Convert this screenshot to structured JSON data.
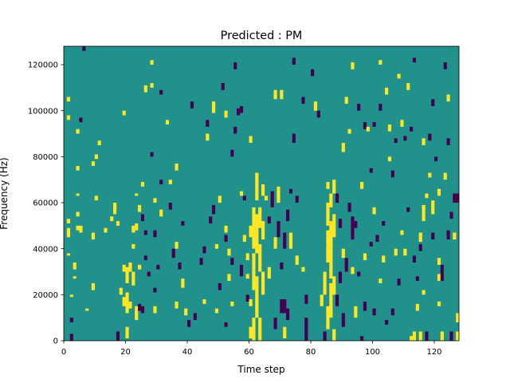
{
  "chart_data": {
    "type": "heatmap",
    "title": "Predicted : PM",
    "xlabel": "Time step",
    "ylabel": "Frequency (Hz)",
    "xlim": [
      0,
      128
    ],
    "ylim": [
      0,
      128000
    ],
    "x_ticks": [
      0,
      20,
      40,
      60,
      80,
      100,
      120
    ],
    "x_tick_labels": [
      "0",
      "20",
      "40",
      "60",
      "80",
      "100",
      "120"
    ],
    "y_ticks": [
      0,
      20000,
      40000,
      60000,
      80000,
      100000,
      120000
    ],
    "y_tick_labels": [
      "0",
      "20000",
      "40000",
      "60000",
      "80000",
      "100000",
      "120000"
    ],
    "grid": false,
    "legend": "none",
    "colormap": "viridis",
    "value_levels": [
      -1,
      0,
      1
    ],
    "level_colors": {
      "-1": "#440154",
      "0": "#21918c",
      "1": "#fde725"
    },
    "background_value": 0,
    "n_time_steps": 128,
    "n_freq_bins": 128,
    "bin_width_hz": 1000,
    "nonzero_cells_note": "cells listed as [time_step, freq_bin_start, freq_bin_end_exclusive, value]; all other cells = 0",
    "cells": [
      [
        1,
        45,
        49,
        1
      ],
      [
        1,
        51,
        53,
        1
      ],
      [
        1,
        37,
        38,
        1
      ],
      [
        1,
        104,
        106,
        1
      ],
      [
        1,
        96,
        98,
        1
      ],
      [
        2,
        19,
        20,
        1
      ],
      [
        2,
        8,
        10,
        -1
      ],
      [
        2,
        0,
        3,
        -1
      ],
      [
        3,
        31,
        34,
        1
      ],
      [
        3,
        27,
        28,
        1
      ],
      [
        4,
        48,
        50,
        1
      ],
      [
        4,
        54,
        56,
        1
      ],
      [
        4,
        63,
        64,
        1
      ],
      [
        4,
        74,
        76,
        1
      ],
      [
        4,
        90,
        92,
        1
      ],
      [
        5,
        47,
        50,
        1
      ],
      [
        5,
        95,
        97,
        -1
      ],
      [
        6,
        126,
        128,
        -1
      ],
      [
        7,
        13,
        14,
        1
      ],
      [
        9,
        22,
        25,
        1
      ],
      [
        9,
        44,
        47,
        1
      ],
      [
        9,
        76,
        78,
        1
      ],
      [
        10,
        61,
        63,
        1
      ],
      [
        10,
        79,
        81,
        1
      ],
      [
        11,
        85,
        87,
        1
      ],
      [
        13,
        47,
        49,
        1
      ],
      [
        15,
        52,
        54,
        1
      ],
      [
        16,
        55,
        60,
        1
      ],
      [
        17,
        0,
        4,
        -1
      ],
      [
        17,
        50,
        52,
        1
      ],
      [
        18,
        20,
        23,
        1
      ],
      [
        19,
        15,
        19,
        1
      ],
      [
        19,
        30,
        33,
        1
      ],
      [
        19,
        98,
        100,
        1
      ],
      [
        20,
        12,
        21,
        1
      ],
      [
        20,
        1,
        6,
        1
      ],
      [
        20,
        25,
        32,
        1
      ],
      [
        21,
        14,
        17,
        1
      ],
      [
        21,
        30,
        34,
        1
      ],
      [
        22,
        24,
        30,
        1
      ],
      [
        22,
        40,
        42,
        1
      ],
      [
        22,
        47,
        50,
        1
      ],
      [
        23,
        9,
        15,
        1
      ],
      [
        23,
        48,
        51,
        1
      ],
      [
        23,
        63,
        64,
        1
      ],
      [
        24,
        56,
        59,
        1
      ],
      [
        24,
        31,
        33,
        1
      ],
      [
        24,
        13,
        16,
        -1
      ],
      [
        25,
        12,
        15,
        -1
      ],
      [
        25,
        52,
        55,
        -1
      ],
      [
        25,
        67,
        69,
        1
      ],
      [
        26,
        108,
        111,
        1
      ],
      [
        26,
        46,
        48,
        -1
      ],
      [
        26,
        35,
        37,
        -1
      ],
      [
        27,
        28,
        30,
        -1
      ],
      [
        28,
        120,
        122,
        1
      ],
      [
        28,
        110,
        112,
        1
      ],
      [
        28,
        80,
        82,
        -1
      ],
      [
        29,
        12,
        15,
        1
      ],
      [
        29,
        60,
        62,
        1
      ],
      [
        29,
        45,
        48,
        -1
      ],
      [
        29,
        21,
        23,
        -1
      ],
      [
        30,
        31,
        33,
        -1
      ],
      [
        31,
        54,
        57,
        1
      ],
      [
        31,
        68,
        70,
        -1
      ],
      [
        31,
        107,
        109,
        -1
      ],
      [
        33,
        94,
        96,
        1
      ],
      [
        34,
        68,
        70,
        1
      ],
      [
        34,
        57,
        60,
        -1
      ],
      [
        35,
        36,
        40,
        -1
      ],
      [
        36,
        14,
        17,
        1
      ],
      [
        36,
        40,
        43,
        1
      ],
      [
        36,
        74,
        77,
        1
      ],
      [
        37,
        31,
        34,
        -1
      ],
      [
        38,
        23,
        27,
        1
      ],
      [
        38,
        50,
        52,
        -1
      ],
      [
        39,
        11,
        14,
        1
      ],
      [
        40,
        6,
        9,
        -1
      ],
      [
        41,
        101,
        104,
        -1
      ],
      [
        42,
        9,
        12,
        -1
      ],
      [
        44,
        33,
        36,
        -1
      ],
      [
        45,
        16,
        18,
        1
      ],
      [
        45,
        38,
        41,
        -1
      ],
      [
        46,
        93,
        96,
        -1
      ],
      [
        46,
        87,
        90,
        1
      ],
      [
        47,
        51,
        54,
        -1
      ],
      [
        48,
        99,
        104,
        1
      ],
      [
        48,
        55,
        59,
        -1
      ],
      [
        49,
        40,
        42,
        1
      ],
      [
        49,
        12,
        14,
        1
      ],
      [
        50,
        22,
        25,
        -1
      ],
      [
        50,
        60,
        63,
        1
      ],
      [
        51,
        109,
        112,
        -1
      ],
      [
        52,
        97,
        100,
        1
      ],
      [
        52,
        47,
        50,
        1
      ],
      [
        52,
        43,
        46,
        -1
      ],
      [
        52,
        6,
        8,
        -1
      ],
      [
        53,
        26,
        29,
        1
      ],
      [
        53,
        37,
        40,
        1
      ],
      [
        54,
        15,
        17,
        1
      ],
      [
        54,
        80,
        83,
        -1
      ],
      [
        54,
        33,
        36,
        -1
      ],
      [
        55,
        90,
        93,
        -1
      ],
      [
        55,
        118,
        121,
        -1
      ],
      [
        56,
        98,
        101,
        -1
      ],
      [
        57,
        99,
        102,
        -1
      ],
      [
        57,
        63,
        65,
        1
      ],
      [
        57,
        28,
        33,
        -1
      ],
      [
        58,
        43,
        46,
        1
      ],
      [
        58,
        61,
        63,
        -1
      ],
      [
        59,
        35,
        38,
        1
      ],
      [
        59,
        27,
        29,
        1
      ],
      [
        59,
        17,
        20,
        -1
      ],
      [
        60,
        15,
        18,
        1
      ],
      [
        60,
        45,
        50,
        1
      ],
      [
        60,
        1,
        6,
        1
      ],
      [
        60,
        86,
        89,
        1
      ],
      [
        61,
        0,
        10,
        1
      ],
      [
        61,
        22,
        38,
        1
      ],
      [
        61,
        40,
        58,
        1
      ],
      [
        62,
        10,
        28,
        1
      ],
      [
        62,
        38,
        55,
        1
      ],
      [
        62,
        61,
        73,
        1
      ],
      [
        63,
        0,
        10,
        1
      ],
      [
        63,
        30,
        42,
        1
      ],
      [
        63,
        49,
        58,
        1
      ],
      [
        64,
        20,
        30,
        1
      ],
      [
        64,
        44,
        52,
        1
      ],
      [
        64,
        63,
        68,
        1
      ],
      [
        65,
        61,
        63,
        1
      ],
      [
        66,
        51,
        54,
        -1
      ],
      [
        66,
        27,
        32,
        1
      ],
      [
        67,
        58,
        65,
        -1
      ],
      [
        68,
        5,
        10,
        -1
      ],
      [
        68,
        40,
        45,
        1
      ],
      [
        68,
        105,
        109,
        1
      ],
      [
        69,
        60,
        67,
        1
      ],
      [
        69,
        45,
        52,
        -1
      ],
      [
        70,
        12,
        18,
        -1
      ],
      [
        70,
        31,
        34,
        -1
      ],
      [
        70,
        105,
        109,
        1
      ],
      [
        71,
        40,
        47,
        -1
      ],
      [
        71,
        1,
        6,
        1
      ],
      [
        71,
        12,
        18,
        -1
      ],
      [
        72,
        52,
        57,
        -1
      ],
      [
        72,
        9,
        14,
        -1
      ],
      [
        73,
        40,
        47,
        1
      ],
      [
        73,
        64,
        66,
        -1
      ],
      [
        74,
        86,
        90,
        -1
      ],
      [
        74,
        120,
        123,
        -1
      ],
      [
        75,
        33,
        37,
        1
      ],
      [
        75,
        60,
        63,
        -1
      ],
      [
        77,
        103,
        106,
        -1
      ],
      [
        77,
        30,
        32,
        1
      ],
      [
        78,
        0,
        10,
        -1
      ],
      [
        78,
        16,
        20,
        -1
      ],
      [
        80,
        115,
        118,
        -1
      ],
      [
        81,
        100,
        104,
        1
      ],
      [
        82,
        97,
        100,
        -1
      ],
      [
        83,
        15,
        20,
        1
      ],
      [
        84,
        0,
        4,
        -1
      ],
      [
        84,
        20,
        30,
        1
      ],
      [
        85,
        5,
        15,
        1
      ],
      [
        85,
        34,
        48,
        1
      ],
      [
        85,
        50,
        60,
        1
      ],
      [
        85,
        66,
        69,
        1
      ],
      [
        86,
        10,
        25,
        1
      ],
      [
        86,
        27,
        40,
        1
      ],
      [
        86,
        40,
        52,
        1
      ],
      [
        86,
        58,
        64,
        1
      ],
      [
        87,
        0,
        5,
        1
      ],
      [
        87,
        20,
        28,
        1
      ],
      [
        87,
        45,
        55,
        1
      ],
      [
        87,
        64,
        70,
        1
      ],
      [
        88,
        15,
        20,
        -1
      ],
      [
        88,
        60,
        64,
        -1
      ],
      [
        89,
        25,
        30,
        -1
      ],
      [
        89,
        49,
        53,
        -1
      ],
      [
        90,
        6,
        12,
        -1
      ],
      [
        90,
        36,
        40,
        1
      ],
      [
        90,
        82,
        86,
        1
      ],
      [
        91,
        30,
        36,
        -1
      ],
      [
        91,
        103,
        106,
        1
      ],
      [
        92,
        56,
        60,
        -1
      ],
      [
        92,
        90,
        92,
        1
      ],
      [
        93,
        29,
        32,
        1
      ],
      [
        93,
        44,
        54,
        -1
      ],
      [
        93,
        118,
        121,
        1
      ],
      [
        94,
        10,
        15,
        1
      ],
      [
        94,
        49,
        52,
        -1
      ],
      [
        95,
        28,
        30,
        -1
      ],
      [
        95,
        100,
        103,
        -1
      ],
      [
        96,
        0,
        2,
        -1
      ],
      [
        96,
        66,
        69,
        1
      ],
      [
        97,
        13,
        17,
        -1
      ],
      [
        97,
        35,
        38,
        1
      ],
      [
        97,
        92,
        95,
        -1
      ],
      [
        98,
        91,
        93,
        1
      ],
      [
        99,
        41,
        43,
        -1
      ],
      [
        99,
        73,
        75,
        -1
      ],
      [
        100,
        11,
        14,
        -1
      ],
      [
        100,
        55,
        58,
        1
      ],
      [
        100,
        93,
        95,
        -1
      ],
      [
        101,
        43,
        46,
        -1
      ],
      [
        102,
        25,
        27,
        1
      ],
      [
        102,
        100,
        103,
        -1
      ],
      [
        102,
        120,
        122,
        1
      ],
      [
        103,
        50,
        52,
        -1
      ],
      [
        103,
        34,
        37,
        1
      ],
      [
        104,
        107,
        110,
        1
      ],
      [
        104,
        7,
        9,
        -1
      ],
      [
        105,
        78,
        80,
        1
      ],
      [
        105,
        91,
        94,
        1
      ],
      [
        106,
        71,
        74,
        -1
      ],
      [
        106,
        11,
        14,
        -1
      ],
      [
        107,
        37,
        40,
        1
      ],
      [
        107,
        86,
        88,
        -1
      ],
      [
        108,
        24,
        27,
        -1
      ],
      [
        108,
        114,
        116,
        1
      ],
      [
        109,
        93,
        96,
        1
      ],
      [
        109,
        46,
        48,
        1
      ],
      [
        110,
        87,
        89,
        -1
      ],
      [
        110,
        37,
        40,
        1
      ],
      [
        111,
        109,
        112,
        1
      ],
      [
        111,
        56,
        58,
        -1
      ],
      [
        112,
        0,
        2,
        1
      ],
      [
        112,
        91,
        93,
        -1
      ],
      [
        113,
        0,
        4,
        1
      ],
      [
        113,
        34,
        37,
        -1
      ],
      [
        113,
        121,
        123,
        -1
      ],
      [
        114,
        26,
        28,
        -1
      ],
      [
        114,
        13,
        16,
        1
      ],
      [
        115,
        0,
        4,
        1
      ],
      [
        115,
        43,
        47,
        1
      ],
      [
        115,
        39,
        42,
        -1
      ],
      [
        116,
        52,
        59,
        1
      ],
      [
        116,
        20,
        22,
        1
      ],
      [
        116,
        85,
        88,
        1
      ],
      [
        117,
        0,
        4,
        -1
      ],
      [
        117,
        62,
        64,
        1
      ],
      [
        118,
        87,
        90,
        -1
      ],
      [
        118,
        71,
        73,
        1
      ],
      [
        119,
        55,
        61,
        1
      ],
      [
        119,
        102,
        105,
        -1
      ],
      [
        119,
        44,
        47,
        -1
      ],
      [
        120,
        78,
        80,
        -1
      ],
      [
        121,
        15,
        17,
        1
      ],
      [
        121,
        26,
        29,
        1
      ],
      [
        121,
        33,
        36,
        1
      ],
      [
        121,
        63,
        66,
        1
      ],
      [
        122,
        0,
        4,
        1
      ],
      [
        122,
        26,
        33,
        -1
      ],
      [
        123,
        118,
        121,
        -1
      ],
      [
        123,
        70,
        73,
        1
      ],
      [
        124,
        85,
        88,
        -1
      ],
      [
        124,
        44,
        48,
        -1
      ],
      [
        124,
        104,
        107,
        1
      ],
      [
        125,
        0,
        4,
        -1
      ],
      [
        125,
        53,
        56,
        -1
      ],
      [
        126,
        44,
        47,
        1
      ],
      [
        126,
        60,
        64,
        -1
      ],
      [
        127,
        8,
        12,
        1
      ],
      [
        127,
        60,
        64,
        -1
      ],
      [
        127,
        0,
        4,
        1
      ]
    ]
  }
}
